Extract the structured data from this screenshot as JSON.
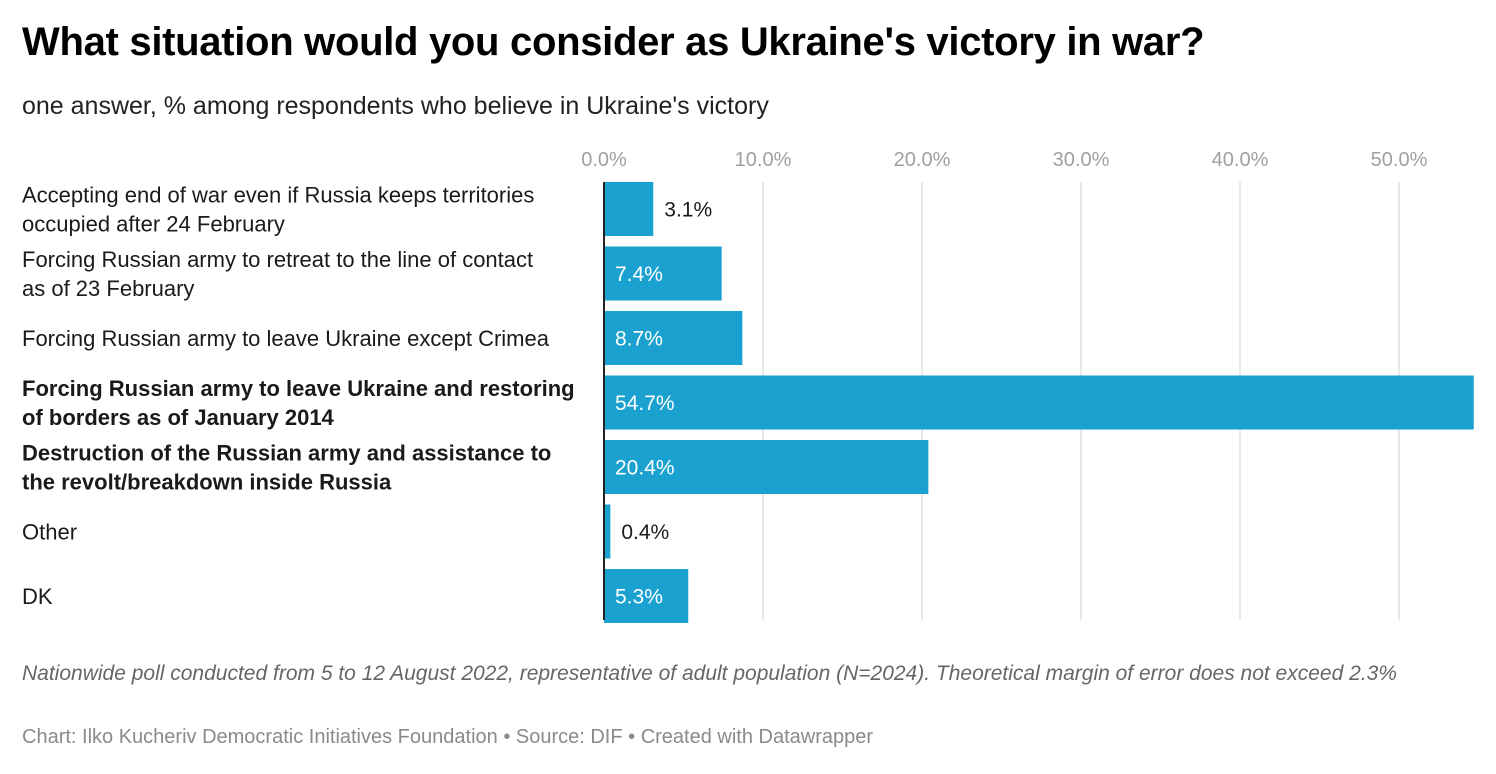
{
  "header": {
    "title": "What situation would you consider as Ukraine's victory in war?",
    "subtitle": "one answer, % among respondents who believe in Ukraine's victory"
  },
  "chart_data": {
    "type": "bar",
    "orientation": "horizontal",
    "categories": [
      [
        "Accepting end of war even if Russia keeps territories",
        "occupied after 24 February"
      ],
      [
        "Forcing Russian army to retreat to the line of contact",
        "as of 23 February"
      ],
      [
        "Forcing Russian army to leave Ukraine except Crimea"
      ],
      [
        "Forcing Russian army to leave Ukraine and restoring",
        "of borders as of January 2014"
      ],
      [
        "Destruction of the Russian army and assistance to",
        "the revolt/breakdown inside Russia"
      ],
      [
        "Other"
      ],
      [
        "DK"
      ]
    ],
    "highlighted": [
      false,
      false,
      false,
      true,
      true,
      false,
      false
    ],
    "values": [
      3.1,
      7.4,
      8.7,
      54.7,
      20.4,
      0.4,
      5.3
    ],
    "value_labels": [
      "3.1%",
      "7.4%",
      "8.7%",
      "54.7%",
      "20.4%",
      "0.4%",
      "5.3%"
    ],
    "x_ticks": [
      0,
      10,
      20,
      30,
      40,
      50
    ],
    "x_tick_labels": [
      "0.0%",
      "10.0%",
      "20.0%",
      "30.0%",
      "40.0%",
      "50.0%"
    ],
    "xlim": [
      0,
      55
    ],
    "grid": true,
    "axis_position": "top",
    "bar_color": "#1aa1d0"
  },
  "footer": {
    "notes": "Nationwide poll conducted from 5 to 12 August 2022, representative of adult population (N=2024). Theoretical margin of error does not exceed 2.3%",
    "credits": "Chart: Ilko Kucheriv Democratic Initiatives Foundation • Source: DIF • Created with Datawrapper"
  }
}
